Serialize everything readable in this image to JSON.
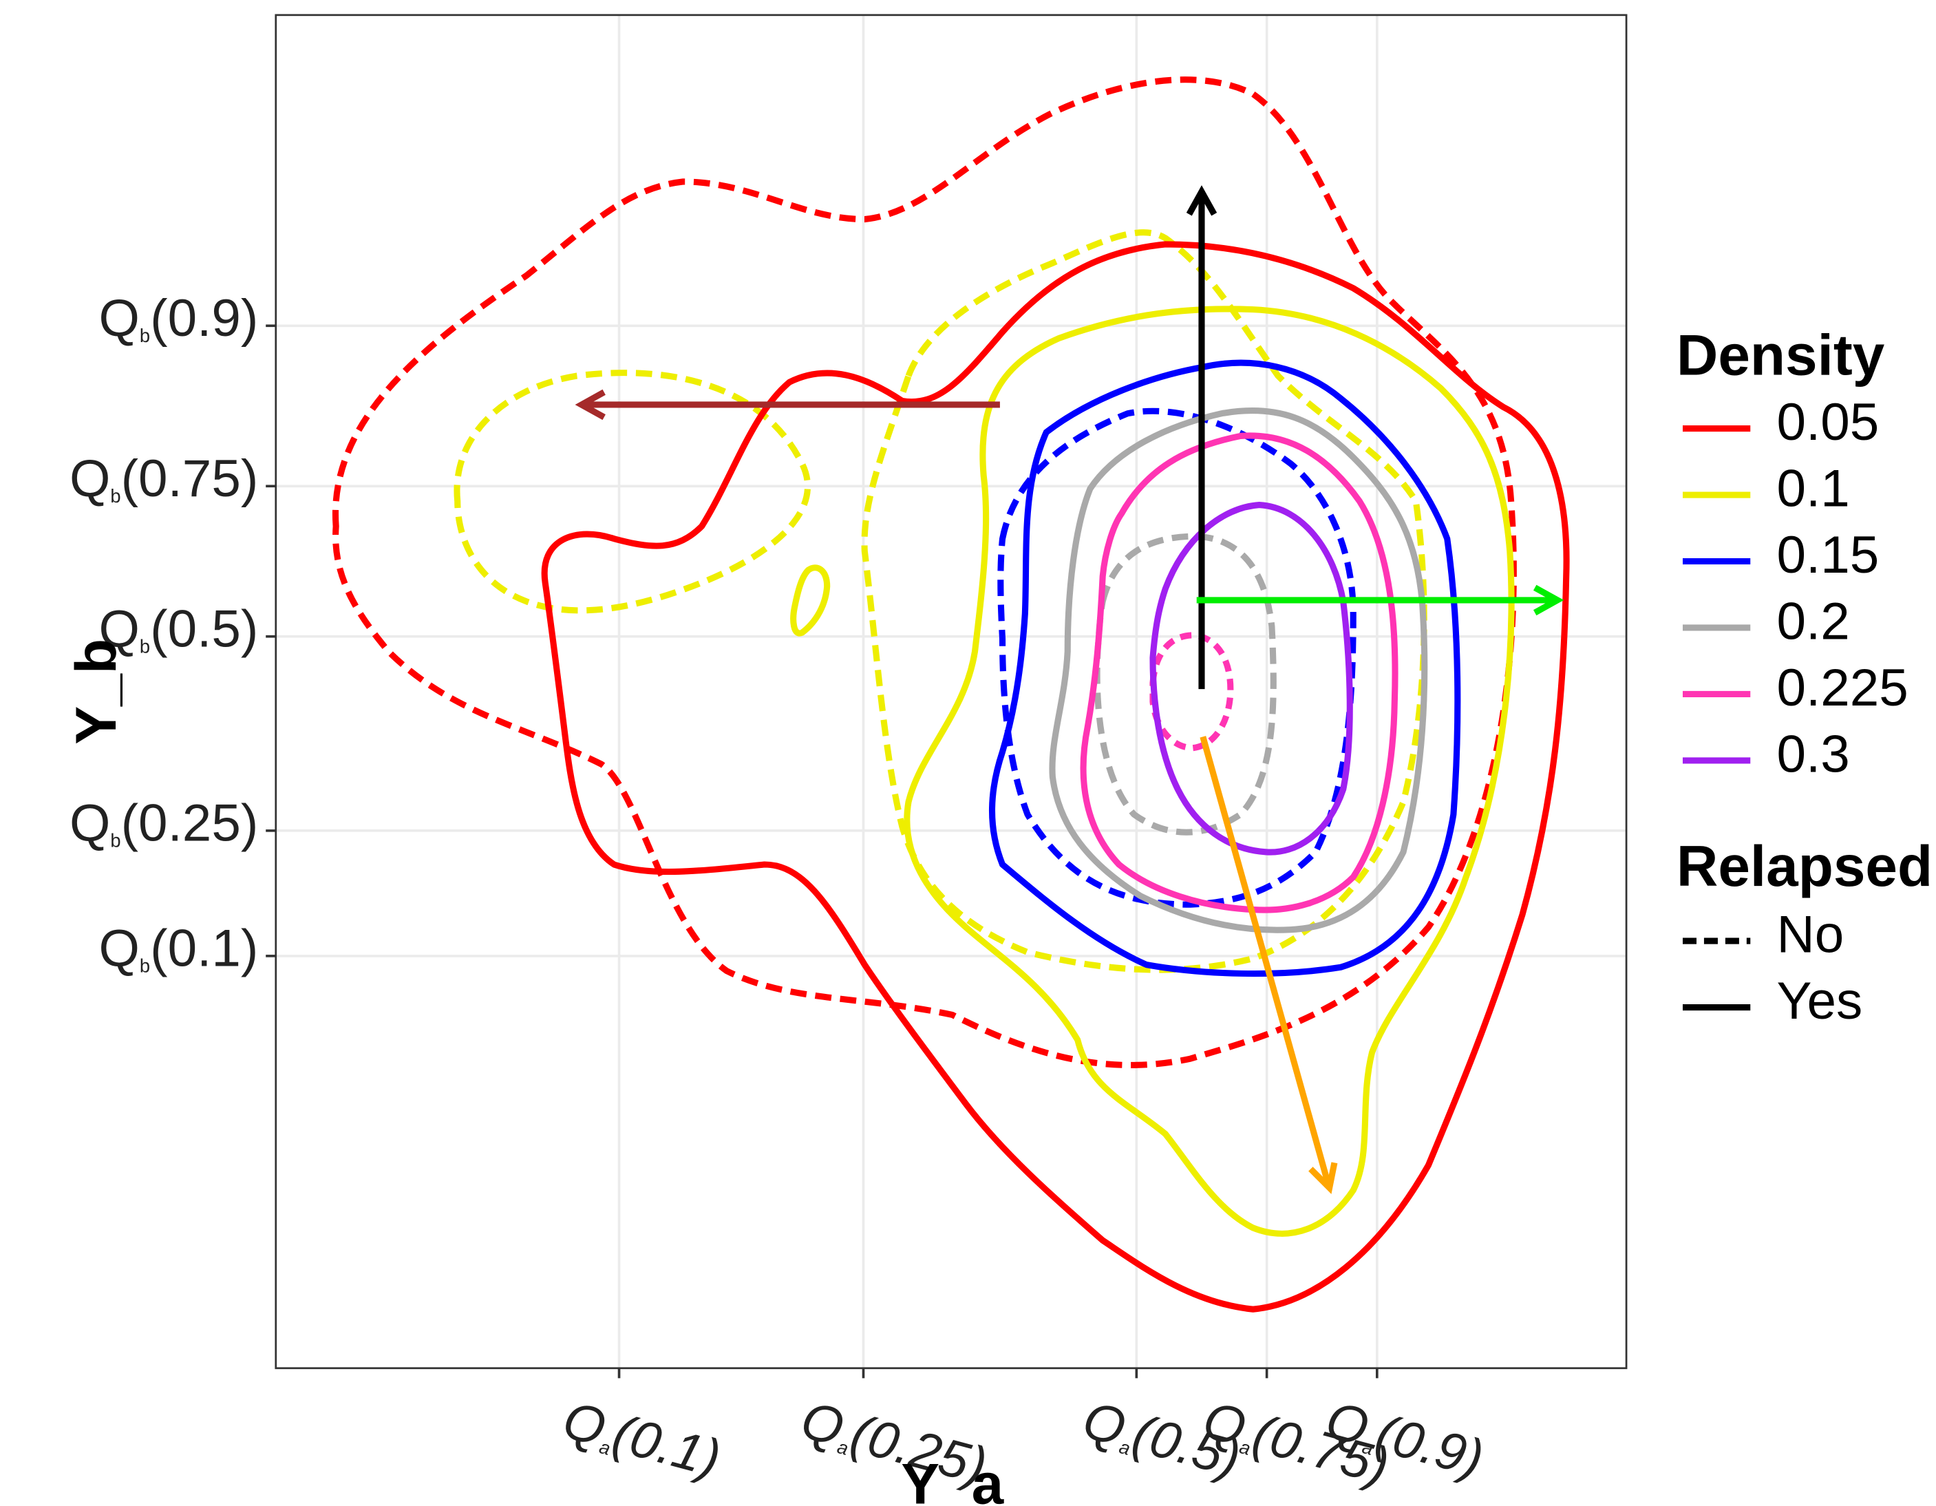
{
  "chart_data": {
    "type": "contour",
    "xlabel": "Y_a",
    "ylabel": "Y_b",
    "x_ticks": [
      {
        "base": "Q",
        "sub": "a",
        "arg": "(0.1)"
      },
      {
        "base": "Q",
        "sub": "a",
        "arg": "(0.25)"
      },
      {
        "base": "Q",
        "sub": "a",
        "arg": "(0.5)"
      },
      {
        "base": "Q",
        "sub": "a",
        "arg": "(0.75)"
      },
      {
        "base": "Q",
        "sub": "a",
        "arg": "(0.9)"
      }
    ],
    "y_ticks": [
      {
        "base": "Q",
        "sub": "b",
        "arg": "(0.9)"
      },
      {
        "base": "Q",
        "sub": "b",
        "arg": "(0.75)"
      },
      {
        "base": "Q",
        "sub": "b",
        "arg": "(0.5)"
      },
      {
        "base": "Q",
        "sub": "b",
        "arg": "(0.25)"
      },
      {
        "base": "Q",
        "sub": "b",
        "arg": "(0.1)"
      }
    ],
    "grid": true,
    "legend_position": "right",
    "density_legend": {
      "title": "Density",
      "entries": [
        {
          "label": "0.05",
          "color": "#ff0000"
        },
        {
          "label": "0.1",
          "color": "#eeee00"
        },
        {
          "label": "0.15",
          "color": "#0000ff"
        },
        {
          "label": "0.2",
          "color": "#a9a9a9"
        },
        {
          "label": "0.225",
          "color": "#ff34b3"
        },
        {
          "label": "0.3",
          "color": "#a020f0"
        }
      ]
    },
    "relapsed_legend": {
      "title": "Relapsed",
      "entries": [
        {
          "label": "No",
          "linetype": "dashed"
        },
        {
          "label": "Yes",
          "linetype": "solid"
        }
      ]
    },
    "arrows": [
      {
        "color": "#000000",
        "direction": "up"
      },
      {
        "color": "#00ee00",
        "direction": "right"
      },
      {
        "color": "#a52a2a",
        "direction": "left"
      },
      {
        "color": "#ffa500",
        "direction": "down-right"
      }
    ]
  }
}
